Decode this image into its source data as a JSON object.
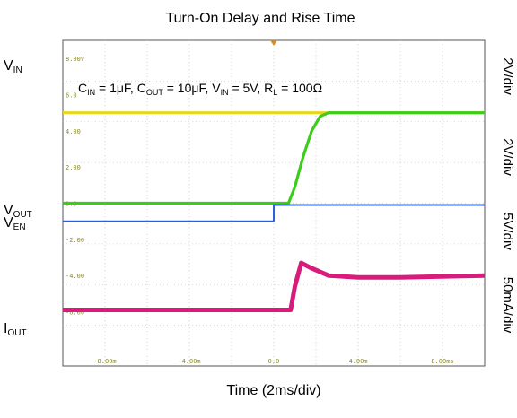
{
  "chart_data": {
    "type": "line",
    "title": "Turn-On Delay and Rise Time",
    "xlabel": "Time (2ms/div)",
    "x_range_ms": [
      -10,
      10
    ],
    "grid": true,
    "x_ticks": [
      "-8.00m",
      "-4.00m",
      "0.0",
      "4.00m",
      "8.00ms"
    ],
    "y_ticks": [
      "8.00V",
      "6.0",
      "4.00",
      "2.00",
      "0.0",
      "-2.00",
      "-4.00",
      "-6.00"
    ],
    "annotation": {
      "cin_label": "C",
      "cin_sub": "IN",
      "cin_value": " = 1μF, ",
      "cout_label": "C",
      "cout_sub": "OUT",
      "cout_value": " = 10μF, ",
      "vin_label": "V",
      "vin_sub": "IN",
      "vin_value": " = 5V, ",
      "rl_label": "R",
      "rl_sub": "L",
      "rl_value": " = 100Ω"
    },
    "series": [
      {
        "label": "V",
        "sub": "IN",
        "scale": "2V/div",
        "color": "#e6d61c",
        "points": [
          [
            -10,
            5.0
          ],
          [
            10,
            5.0
          ]
        ]
      },
      {
        "label": "V",
        "sub": "OUT",
        "scale": "2V/div",
        "color": "#3ccc1c",
        "points": [
          [
            -10,
            0.0
          ],
          [
            0.7,
            0.0
          ],
          [
            1.0,
            0.9
          ],
          [
            1.4,
            2.6
          ],
          [
            1.8,
            4.0
          ],
          [
            2.2,
            4.8
          ],
          [
            2.6,
            5.0
          ],
          [
            10,
            5.0
          ]
        ]
      },
      {
        "label": "V",
        "sub": "EN",
        "scale": "5V/div",
        "color": "#2c64d8",
        "points": [
          [
            -10,
            -1.0
          ],
          [
            0.0,
            -1.0
          ],
          [
            0.0,
            -0.1
          ],
          [
            10,
            -0.1
          ]
        ]
      },
      {
        "label": "I",
        "sub": "OUT",
        "scale": "50mA/div",
        "color": "#d81c7c",
        "points": [
          [
            -10,
            -5.9
          ],
          [
            0.8,
            -5.9
          ],
          [
            1.0,
            -4.6
          ],
          [
            1.3,
            -3.3
          ],
          [
            1.8,
            -3.6
          ],
          [
            2.6,
            -4.0
          ],
          [
            4.0,
            -4.1
          ],
          [
            6.0,
            -4.1
          ],
          [
            10,
            -4.0
          ]
        ]
      }
    ]
  }
}
